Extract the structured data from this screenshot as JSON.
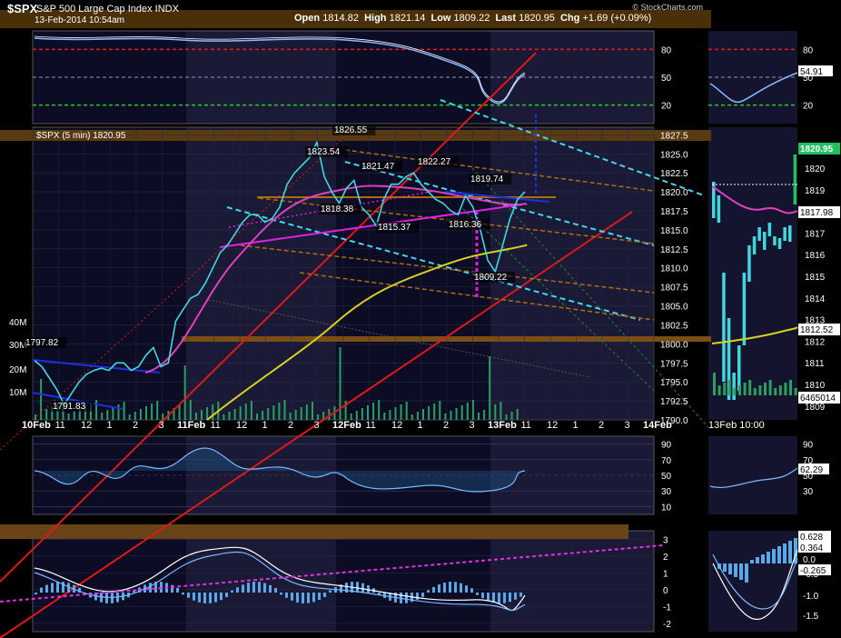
{
  "header": {
    "symbol": "$SPX",
    "name": "S&P 500 Large Cap Index  INDX",
    "datetime": "13-Feb-2014 10:54am",
    "brand": "© StockCharts.com",
    "open_label": "Open",
    "open": "1814.82",
    "high_label": "High",
    "high": "1821.14",
    "low_label": "Low",
    "low": "1809.22",
    "last_label": "Last",
    "last": "1820.95",
    "chg_label": "Chg",
    "chg": "+1.69 (+0.09%)"
  },
  "chart_data": [
    {
      "type": "line",
      "panel": "rsi-top",
      "yticks": [
        80,
        50,
        20
      ],
      "ylim": [
        0,
        100
      ]
    },
    {
      "type": "line",
      "panel": "price-main",
      "title": "$SPX (5 min) 1820.95",
      "ylim": [
        1790,
        1828.5
      ],
      "yticks": [
        "1827.5",
        "1825.0",
        "1822.5",
        "1820.0",
        "1817.5",
        "1815.0",
        "1812.5",
        "1810.0",
        "1807.5",
        "1805.0",
        "1802.5",
        "1800.0",
        "1797.5",
        "1795.0",
        "1792.5",
        "1790.0"
      ],
      "xticks": [
        "10Feb",
        "11",
        "12",
        "1",
        "2",
        "3",
        "11Feb",
        "11",
        "12",
        "1",
        "2",
        "3",
        "12Feb",
        "11",
        "12",
        "1",
        "2",
        "3",
        "13Feb",
        "11",
        "12",
        "1",
        "2",
        "3",
        "14Feb"
      ],
      "volume_labels": [
        "40M",
        "30M",
        "20M",
        "10M"
      ],
      "annotations": [
        "1826.55",
        "1823.54",
        "1821.47",
        "1822.27",
        "1819.74",
        "1818.38",
        "1815.37",
        "1816.36",
        "1809.22",
        "1797.82",
        "1791.83"
      ],
      "series": [
        {
          "values": [
            1797.8,
            1797.0,
            1795.5,
            1794.0,
            1792.0,
            1793.5,
            1795.0,
            1796.0,
            1796.5,
            1796.8,
            1796.5,
            1797.5,
            1797.5,
            1796.5,
            1797.0,
            1798.5,
            1799.5,
            1797.0,
            1797.5,
            1803.0,
            1804.5,
            1806.0,
            1806.5,
            1808.0,
            1810.0,
            1812.0,
            1813.0,
            1814.5,
            1816.0,
            1817.0,
            1817.0,
            1816.0,
            1816.5,
            1818.0,
            1821.0,
            1822.5,
            1823.5,
            1824.5,
            1826.5,
            1822.0,
            1820.0,
            1818.5,
            1820.5,
            1821.5,
            1818.0,
            1817.0,
            1815.5,
            1819.0,
            1821.0,
            1821.0,
            1822.0,
            1822.5,
            1821.0,
            1820.0,
            1819.0,
            1818.5,
            1817.5,
            1817.0,
            1819.5,
            1818.0,
            1815.0,
            1811.0,
            1809.5,
            1813.0,
            1816.5,
            1819.0,
            1820.0
          ]
        }
      ]
    },
    {
      "type": "line",
      "panel": "rsi-lower",
      "yticks": [
        90,
        70,
        50,
        30,
        10
      ],
      "ylim": [
        0,
        100
      ]
    },
    {
      "type": "line",
      "panel": "macd",
      "yticks": [
        3,
        2,
        1,
        0,
        -1,
        -2
      ],
      "ylim": [
        -2.5,
        3.5
      ]
    },
    {
      "type": "line",
      "panel": "side-rsi",
      "value_label": "54.91"
    },
    {
      "type": "bar",
      "panel": "side-price",
      "yticks": [
        "1820",
        "1819",
        "1818",
        "1817",
        "1816",
        "1815",
        "1814",
        "1813",
        "1812",
        "1811",
        "1810",
        "1809"
      ],
      "value_labels": [
        "1820.95",
        "1817.98",
        "1812.52",
        "6465014"
      ],
      "xlabel": "13Feb 10:00"
    },
    {
      "type": "line",
      "panel": "side-lower-rsi",
      "yticks": [
        "90",
        "70",
        "50",
        "30"
      ],
      "value_label": "62.29"
    },
    {
      "type": "bar",
      "panel": "side-macd",
      "yticks": [
        "0.5",
        "0.0",
        "-0.5",
        "-1.0",
        "-1.5"
      ],
      "value_labels": [
        "0.628",
        "0.364",
        "-0.265"
      ]
    }
  ]
}
